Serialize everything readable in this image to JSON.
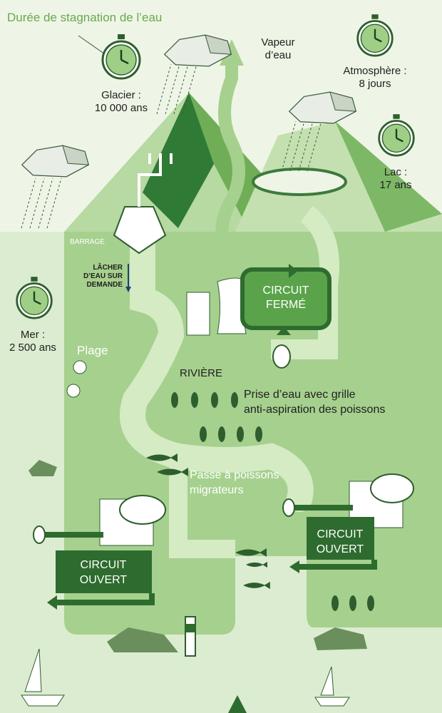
{
  "title": "Durée de stagnation de l’eau",
  "labels": {
    "glacier": [
      "Glacier :",
      "10 000 ans"
    ],
    "vapeur": [
      "Vapeur",
      "d’eau"
    ],
    "atmosphere": [
      "Atmosphère :",
      "8 jours"
    ],
    "lac": [
      "Lac :",
      "17 ans"
    ],
    "barrage": "BARRAGE",
    "lacher": [
      "LÂCHER",
      "D’EAU SUR",
      "DEMANDE"
    ],
    "mer": [
      "Mer :",
      "2 500 ans"
    ],
    "plage": "Plage",
    "circuit_ferme": [
      "CIRCUIT",
      "FERMÉ"
    ],
    "riviere": "RIVIÈRE",
    "prise": [
      "Prise d’eau avec grille",
      "anti-aspiration des poissons"
    ],
    "passe": [
      "Passe à poissons",
      "migrateurs"
    ],
    "circuit_ouvert_1": [
      "CIRCUIT",
      "OUVERT"
    ],
    "circuit_ouvert_2": [
      "CIRCUIT",
      "OUVERT"
    ]
  }
}
